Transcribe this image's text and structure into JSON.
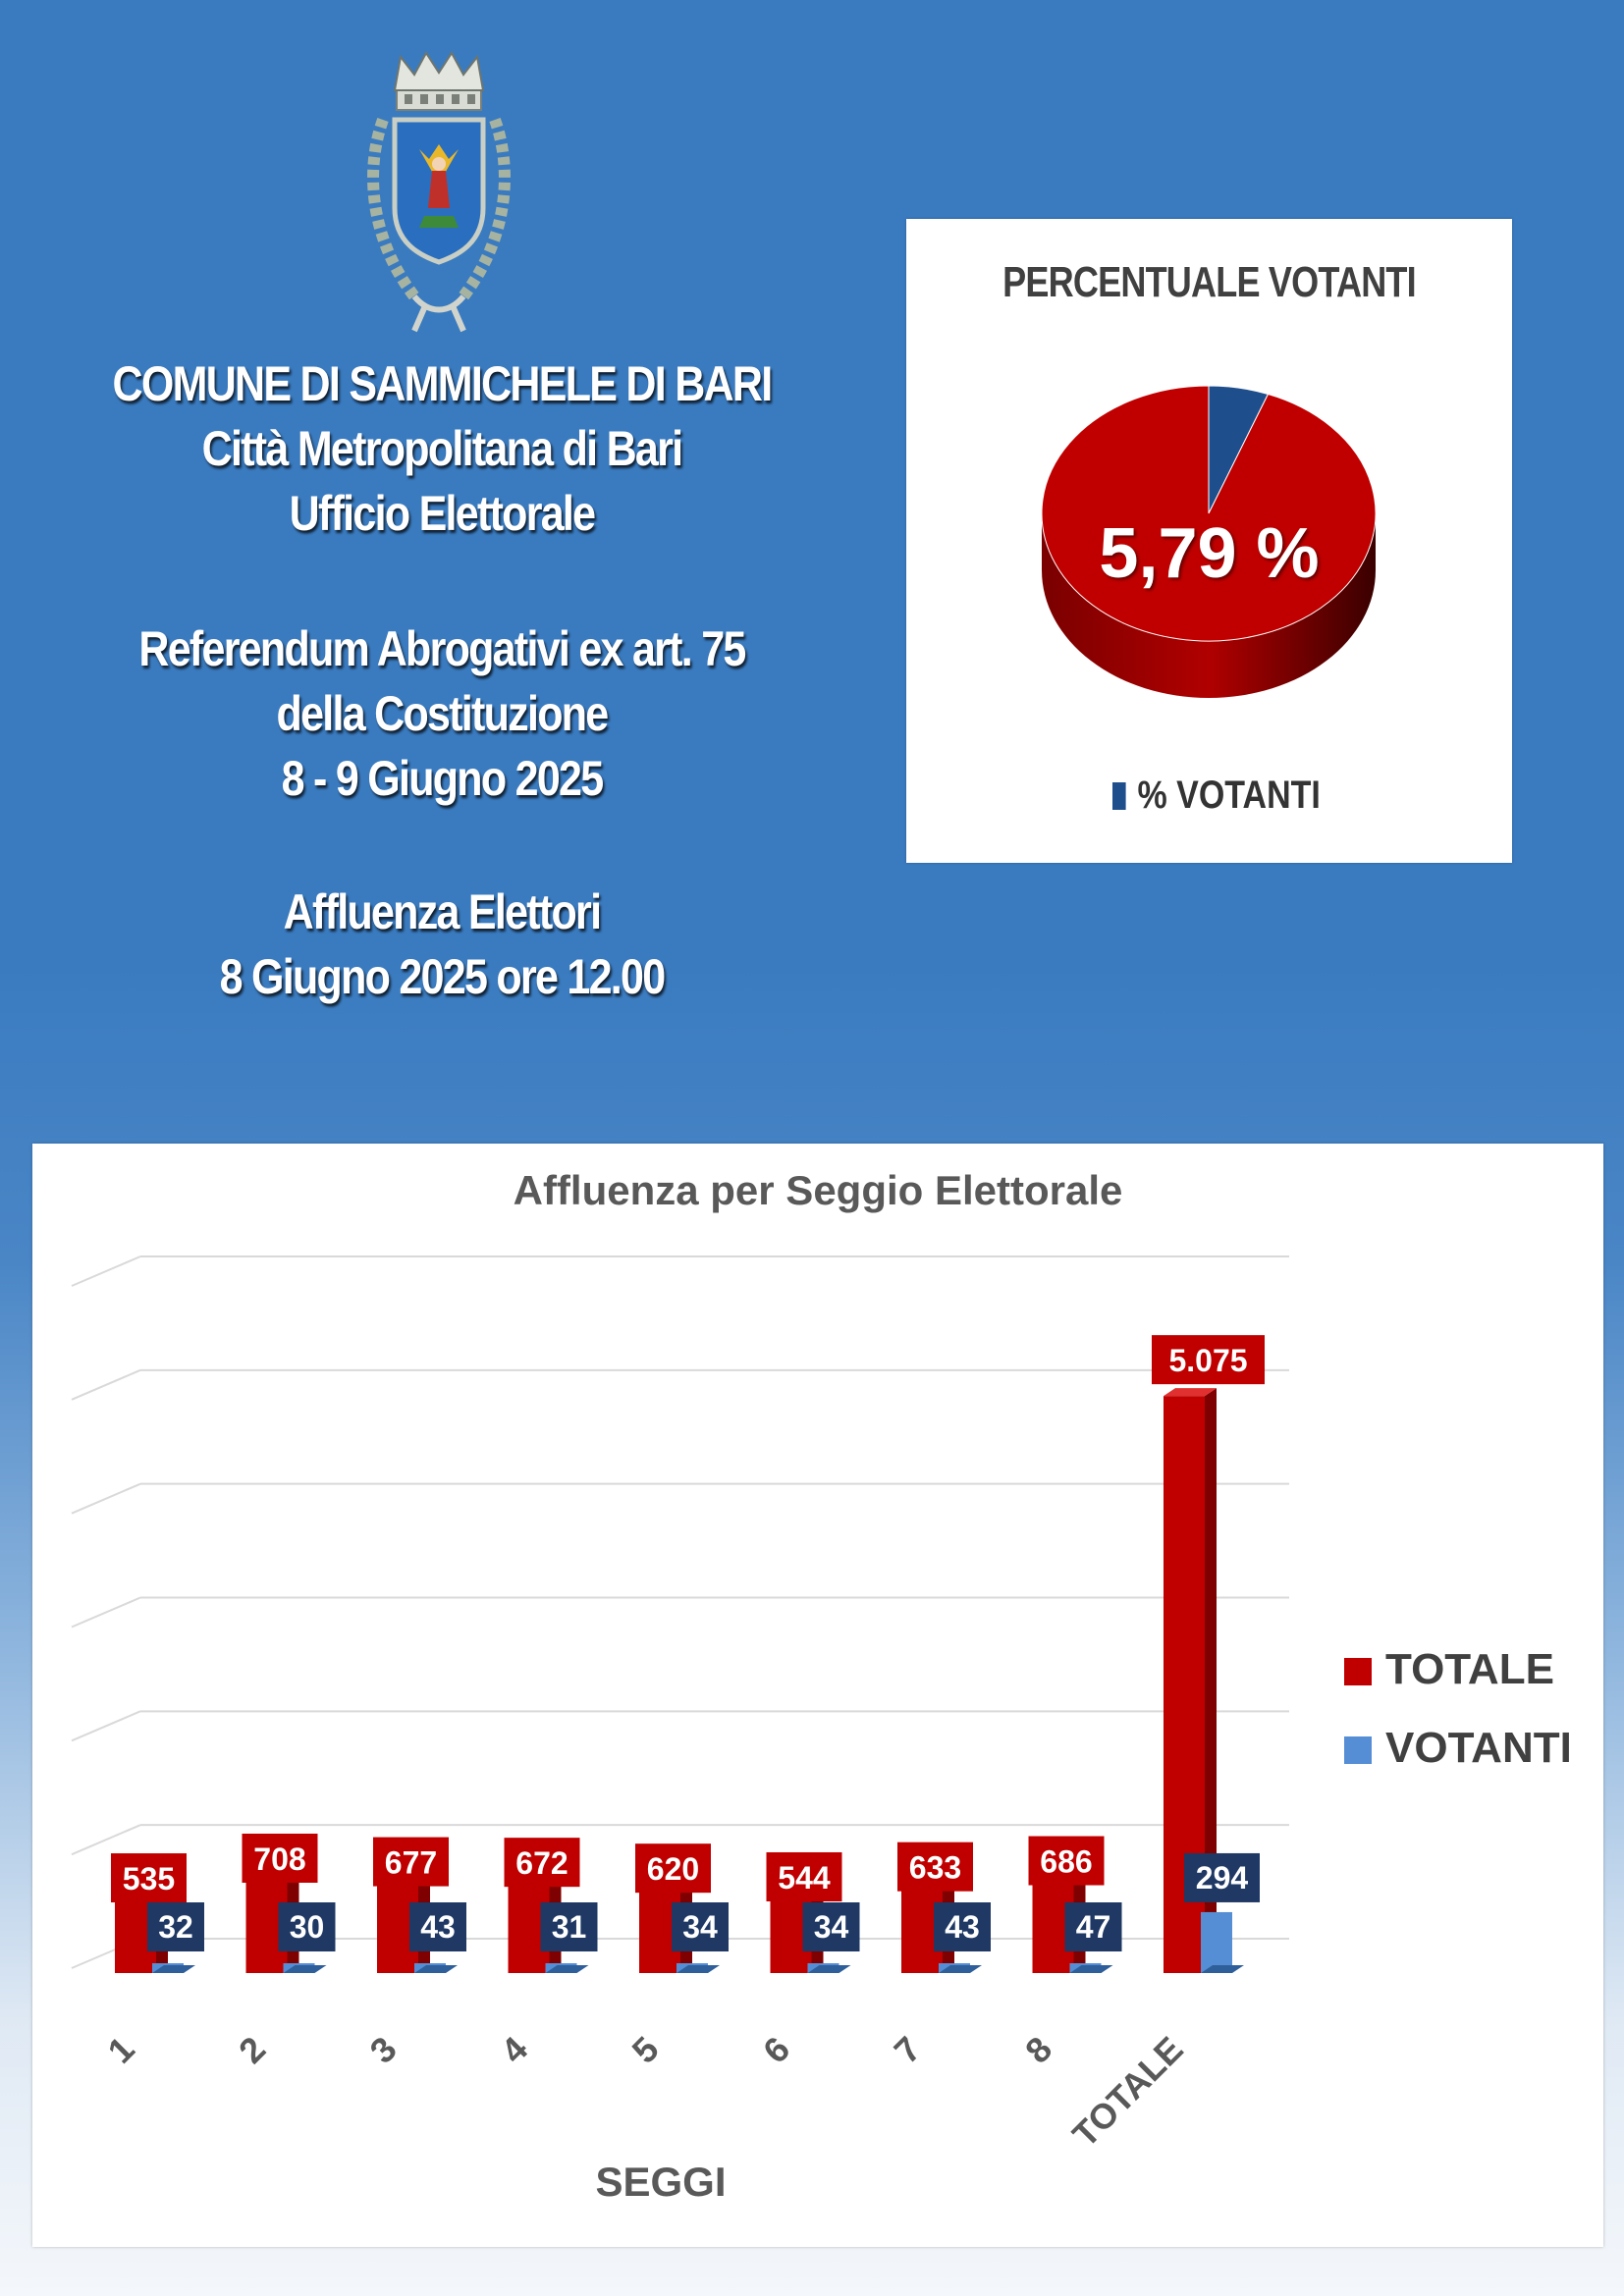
{
  "header": {
    "lines": [
      "COMUNE DI SAMMICHELE DI BARI",
      "Città Metropolitana di Bari",
      "Ufficio Elettorale",
      "Referendum Abrogativi ex art. 75",
      "della Costituzione",
      "8 - 9 Giugno 2025",
      "Affluenza Elettori",
      "8 Giugno 2025 ore 12.00"
    ]
  },
  "colors": {
    "background": "#3a7bc0",
    "totale": "#c00000",
    "votanti": "#558ed5",
    "votanti_label": "#1f3864",
    "pie_votanti": "#1f4e8c"
  },
  "chart_data": [
    {
      "type": "pie",
      "title": "PERCENTUALE  VOTANTI",
      "slices": [
        {
          "name": "% VOTANTI",
          "value": 5.79
        },
        {
          "name": "",
          "value": 94.21
        }
      ],
      "center_label": "5,79 %",
      "legend": [
        "% VOTANTI"
      ],
      "legend_position": "bottom"
    },
    {
      "type": "bar",
      "title": "Affluenza per Seggio Elettorale",
      "xlabel": "SEGGI",
      "ylabel": "",
      "categories": [
        "1",
        "2",
        "3",
        "4",
        "5",
        "6",
        "7",
        "8",
        "TOTALE"
      ],
      "series": [
        {
          "name": "TOTALE",
          "values": [
            535,
            708,
            677,
            672,
            620,
            544,
            633,
            686,
            5075
          ],
          "labels": [
            "535",
            "708",
            "677",
            "672",
            "620",
            "544",
            "633",
            "686",
            "5.075"
          ]
        },
        {
          "name": "VOTANTI",
          "values": [
            32,
            30,
            43,
            31,
            34,
            34,
            43,
            47,
            294
          ],
          "labels": [
            "32",
            "30",
            "43",
            "31",
            "34",
            "34",
            "43",
            "47",
            "294"
          ]
        }
      ],
      "ylim": [
        0,
        6000
      ],
      "grid": true,
      "legend_position": "right"
    }
  ]
}
